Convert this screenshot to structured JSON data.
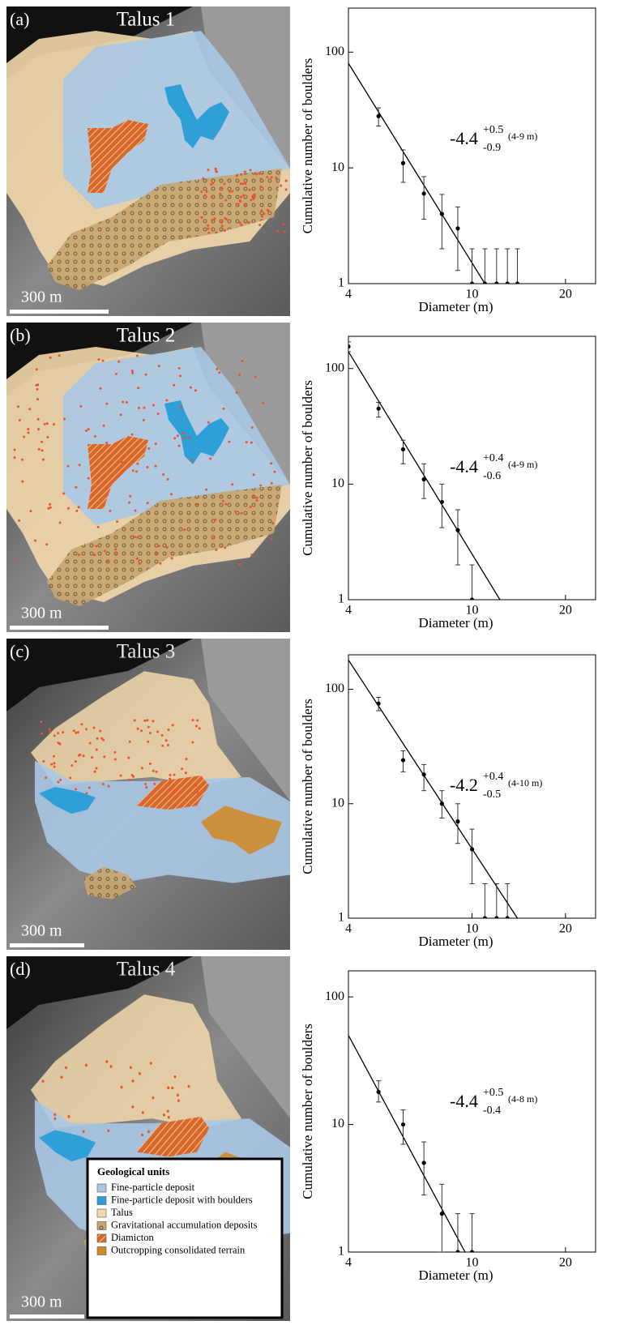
{
  "maps": [
    {
      "label": "(a)",
      "title": "Talus 1",
      "scale": "300 m"
    },
    {
      "label": "(b)",
      "title": "Talus 2",
      "scale": "300 m"
    },
    {
      "label": "(c)",
      "title": "Talus 3",
      "scale": "300 m"
    },
    {
      "label": "(d)",
      "title": "Talus 4",
      "scale": "300 m"
    }
  ],
  "legend": {
    "title": "Geological units",
    "items": [
      {
        "label": "Fine-particle deposit",
        "color": "#a9c8e6"
      },
      {
        "label": "Fine-particle deposit with boulders",
        "color": "#2f9fd8"
      },
      {
        "label": "Talus",
        "color": "#f3d9ad"
      },
      {
        "label": "Gravitational accumulation deposits",
        "color": "#c8a56e"
      },
      {
        "label": "Diamicton",
        "color": "#e07a3a"
      },
      {
        "label": "Outcropping consolidated terrain",
        "color": "#d08a2a"
      }
    ]
  },
  "chart_data": [
    {
      "type": "scatter",
      "x_label": "Diameter (m)",
      "y_label": "Cumulative number of boulders",
      "log_x": true,
      "log_y": true,
      "xlim": [
        4,
        25
      ],
      "ylim": [
        1,
        240
      ],
      "xticks": [
        4,
        10,
        20
      ],
      "yticks": [
        1,
        10,
        100
      ],
      "x": [
        5,
        6,
        7,
        8,
        9,
        10,
        11,
        12,
        13,
        14
      ],
      "values": [
        28,
        11,
        6,
        4,
        3,
        1,
        1,
        1,
        1,
        1
      ],
      "error_bars": [
        [
          23,
          33
        ],
        [
          7.5,
          14.3
        ],
        [
          3.6,
          8.4
        ],
        [
          2,
          5.9
        ],
        [
          1.3,
          4.6
        ],
        [
          1,
          2
        ],
        [
          1,
          2
        ],
        [
          1,
          2
        ],
        [
          1,
          2
        ],
        [
          1,
          2
        ]
      ],
      "fit": {
        "x": [
          4,
          11
        ],
        "values": [
          80,
          1
        ]
      },
      "annotation": {
        "slope": "-4.4",
        "plus": "+0.5",
        "minus": "-0.9",
        "range": "(4-9 m)"
      }
    },
    {
      "type": "scatter",
      "x_label": "Diameter (m)",
      "y_label": "Cumulative number of boulders",
      "log_x": true,
      "log_y": true,
      "xlim": [
        4,
        25
      ],
      "ylim": [
        1,
        190
      ],
      "xticks": [
        4,
        10,
        20
      ],
      "yticks": [
        1,
        10,
        100
      ],
      "x": [
        4,
        5,
        6,
        7,
        8,
        9,
        10
      ],
      "values": [
        155,
        45,
        20,
        11,
        7,
        4,
        1
      ],
      "error_bars": [
        [
          140,
          170
        ],
        [
          38,
          51
        ],
        [
          15,
          24
        ],
        [
          7.5,
          15
        ],
        [
          4.2,
          10
        ],
        [
          2,
          6
        ],
        [
          1,
          2
        ]
      ],
      "fit": {
        "x": [
          4,
          12.3
        ],
        "values": [
          140,
          1
        ]
      },
      "annotation": {
        "slope": "-4.4",
        "plus": "+0.4",
        "minus": "-0.6",
        "range": "(4-9 m)"
      }
    },
    {
      "type": "scatter",
      "x_label": "Diameter (m)",
      "y_label": "Cumulative number of boulders",
      "log_x": true,
      "log_y": true,
      "xlim": [
        4,
        25
      ],
      "ylim": [
        1,
        200
      ],
      "xticks": [
        4,
        10,
        20
      ],
      "yticks": [
        1,
        10,
        100
      ],
      "x": [
        5,
        6,
        7,
        8,
        9,
        10,
        11,
        12,
        13
      ],
      "values": [
        75,
        24,
        18,
        10,
        7,
        4,
        1,
        1,
        1
      ],
      "error_bars": [
        [
          65,
          85
        ],
        [
          19,
          29
        ],
        [
          13,
          22
        ],
        [
          7.5,
          13
        ],
        [
          4.5,
          10
        ],
        [
          2,
          6
        ],
        [
          1,
          2
        ],
        [
          1,
          2
        ],
        [
          1,
          2
        ]
      ],
      "fit": {
        "x": [
          4,
          14
        ],
        "values": [
          180,
          1
        ]
      },
      "annotation": {
        "slope": "-4.2",
        "plus": "+0.4",
        "minus": "-0.5",
        "range": "(4-10 m)"
      }
    },
    {
      "type": "scatter",
      "x_label": "Diameter (m)",
      "y_label": "Cumulative number of boulders",
      "log_x": true,
      "log_y": true,
      "xlim": [
        4,
        25
      ],
      "ylim": [
        1,
        160
      ],
      "xticks": [
        4,
        10,
        20
      ],
      "yticks": [
        1,
        10,
        100
      ],
      "x": [
        5,
        6,
        7,
        8,
        9,
        10
      ],
      "values": [
        18,
        10,
        5,
        2,
        1,
        1
      ],
      "error_bars": [
        [
          15,
          22
        ],
        [
          7,
          13
        ],
        [
          2.8,
          7.3
        ],
        [
          1,
          3.4
        ],
        [
          1,
          2
        ],
        [
          1,
          2
        ]
      ],
      "fit": {
        "x": [
          4,
          9.5
        ],
        "values": [
          50,
          1
        ]
      },
      "annotation": {
        "slope": "-4.4",
        "plus": "+0.5",
        "minus": "-0.4",
        "range": "(4-8 m)"
      }
    }
  ]
}
